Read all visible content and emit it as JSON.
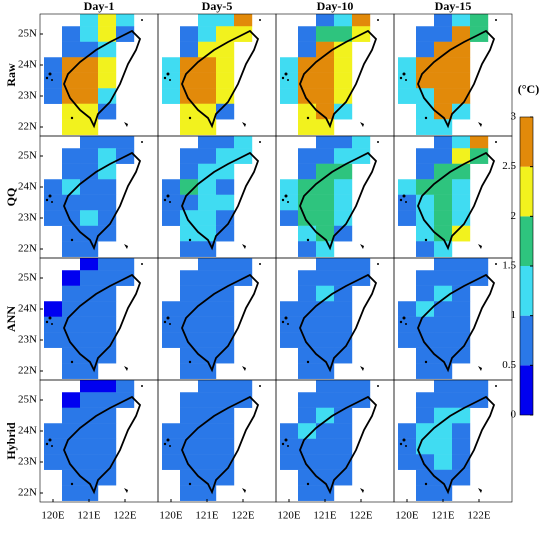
{
  "columns": [
    "Day-1",
    "Day-5",
    "Day-10",
    "Day-15"
  ],
  "rows": [
    "Raw",
    "QQ",
    "ANN",
    "Hybrid"
  ],
  "lat_ticks": [
    {
      "value": 25,
      "label": "25N"
    },
    {
      "value": 24,
      "label": "24N"
    },
    {
      "value": 23,
      "label": "23N"
    },
    {
      "value": 22,
      "label": "22N"
    }
  ],
  "lon_ticks": [
    {
      "value": 120,
      "label": "120E"
    },
    {
      "value": 121,
      "label": "121E"
    },
    {
      "value": 122,
      "label": "122E"
    }
  ],
  "cell_lon": [
    120,
    120.5,
    121,
    121.5,
    122
  ],
  "cell_lat": [
    25.5,
    25,
    24.5,
    24,
    23.5,
    23,
    22.5,
    22
  ],
  "colorbar": {
    "label": "(°C)",
    "ticks": [
      0,
      0.5,
      1,
      1.5,
      2,
      2.5,
      3
    ],
    "colors": [
      "#0000f0",
      "#2a78e8",
      "#40dcf2",
      "#2ec47e",
      "#f2f21e",
      "#e28a0a"
    ]
  },
  "panels": [
    [
      [
        [
          null,
          null,
          1.2,
          2.2,
          1.2
        ],
        [
          null,
          0.8,
          1.2,
          2.2,
          0.8
        ],
        [
          null,
          0.8,
          0.8,
          1.2,
          null
        ],
        [
          0.8,
          2.7,
          2.7,
          2.2,
          null
        ],
        [
          0.8,
          2.7,
          2.7,
          2.2,
          null
        ],
        [
          0.8,
          2.7,
          2.7,
          1.2,
          null
        ],
        [
          null,
          2.2,
          2.2,
          0.8,
          null
        ],
        [
          null,
          2.2,
          2.2,
          null,
          null
        ]
      ],
      [
        [
          null,
          null,
          1.2,
          1.2,
          2.7
        ],
        [
          null,
          0.8,
          1.2,
          2.2,
          2.2
        ],
        [
          null,
          0.8,
          2.2,
          2.2,
          null
        ],
        [
          1.2,
          2.7,
          2.7,
          2.2,
          null
        ],
        [
          1.2,
          2.7,
          2.7,
          2.2,
          null
        ],
        [
          1.2,
          2.7,
          2.7,
          2.2,
          null
        ],
        [
          null,
          2.2,
          2.2,
          0.8,
          null
        ],
        [
          null,
          2.2,
          2.2,
          null,
          null
        ]
      ],
      [
        [
          null,
          null,
          0.8,
          1.2,
          2.7
        ],
        [
          null,
          0.8,
          1.8,
          1.8,
          2.2
        ],
        [
          null,
          0.8,
          2.7,
          2.2,
          null
        ],
        [
          1.2,
          2.7,
          2.7,
          2.2,
          null
        ],
        [
          1.2,
          2.7,
          2.7,
          2.2,
          null
        ],
        [
          1.2,
          2.7,
          2.7,
          2.2,
          null
        ],
        [
          null,
          2.2,
          2.7,
          1.2,
          null
        ],
        [
          null,
          2.2,
          2.2,
          null,
          null
        ]
      ],
      [
        [
          null,
          null,
          0.8,
          1.2,
          1.8
        ],
        [
          null,
          0.8,
          0.8,
          2.7,
          1.8
        ],
        [
          null,
          0.8,
          2.7,
          2.7,
          null
        ],
        [
          1.2,
          2.7,
          2.7,
          2.7,
          null
        ],
        [
          1.2,
          2.7,
          2.7,
          2.7,
          null
        ],
        [
          1.2,
          1.2,
          2.7,
          2.7,
          null
        ],
        [
          null,
          1.2,
          2.7,
          1.2,
          null
        ],
        [
          null,
          1.2,
          1.2,
          null,
          null
        ]
      ]
    ],
    [
      [
        [
          null,
          null,
          0.8,
          0.8,
          0.8
        ],
        [
          null,
          0.8,
          0.8,
          1.2,
          0.8
        ],
        [
          null,
          0.8,
          0.8,
          1.2,
          null
        ],
        [
          0.8,
          1.2,
          0.8,
          0.8,
          null
        ],
        [
          0.8,
          0.8,
          0.8,
          0.8,
          null
        ],
        [
          0.8,
          0.8,
          1.2,
          0.8,
          null
        ],
        [
          null,
          0.8,
          0.8,
          0.8,
          null
        ],
        [
          null,
          0.8,
          0.8,
          null,
          null
        ]
      ],
      [
        [
          null,
          null,
          0.8,
          0.8,
          1.2
        ],
        [
          null,
          0.8,
          0.8,
          1.2,
          1.2
        ],
        [
          null,
          0.8,
          1.2,
          1.2,
          null
        ],
        [
          0.8,
          1.8,
          1.2,
          0.8,
          null
        ],
        [
          0.8,
          0.8,
          1.2,
          1.2,
          null
        ],
        [
          0.8,
          1.2,
          1.2,
          0.8,
          null
        ],
        [
          null,
          1.2,
          1.2,
          0.8,
          null
        ],
        [
          null,
          0.8,
          0.8,
          null,
          null
        ]
      ],
      [
        [
          null,
          null,
          0.8,
          0.8,
          1.2
        ],
        [
          null,
          0.8,
          0.8,
          1.2,
          1.2
        ],
        [
          null,
          0.8,
          1.8,
          1.8,
          null
        ],
        [
          1.2,
          1.8,
          1.8,
          1.2,
          null
        ],
        [
          1.2,
          1.8,
          1.8,
          1.2,
          null
        ],
        [
          0.8,
          1.8,
          1.8,
          1.2,
          null
        ],
        [
          null,
          1.2,
          1.8,
          0.8,
          null
        ],
        [
          null,
          0.8,
          1.2,
          null,
          null
        ]
      ],
      [
        [
          null,
          null,
          0.8,
          1.2,
          2.7
        ],
        [
          null,
          0.8,
          0.8,
          2.2,
          1.8
        ],
        [
          null,
          0.8,
          1.8,
          1.8,
          null
        ],
        [
          1.2,
          1.8,
          1.8,
          1.2,
          null
        ],
        [
          0.8,
          1.2,
          1.8,
          1.2,
          null
        ],
        [
          0.8,
          1.2,
          1.8,
          1.2,
          null
        ],
        [
          null,
          1.2,
          1.8,
          2.2,
          null
        ],
        [
          null,
          0.8,
          1.2,
          null,
          null
        ]
      ]
    ],
    [
      [
        [
          null,
          null,
          0.3,
          0.8,
          0.8
        ],
        [
          null,
          0.3,
          0.8,
          0.8,
          0.8
        ],
        [
          null,
          0.8,
          0.8,
          0.8,
          null
        ],
        [
          0.3,
          0.8,
          0.8,
          0.8,
          null
        ],
        [
          0.8,
          0.8,
          0.8,
          0.8,
          null
        ],
        [
          0.8,
          0.8,
          0.8,
          0.8,
          null
        ],
        [
          null,
          0.8,
          0.8,
          0.8,
          null
        ],
        [
          null,
          0.8,
          0.8,
          null,
          null
        ]
      ],
      [
        [
          null,
          null,
          0.8,
          0.8,
          0.8
        ],
        [
          null,
          0.8,
          0.8,
          0.8,
          0.8
        ],
        [
          null,
          0.8,
          0.8,
          0.8,
          null
        ],
        [
          0.8,
          0.8,
          0.8,
          0.8,
          null
        ],
        [
          0.8,
          0.8,
          0.8,
          0.8,
          null
        ],
        [
          0.8,
          0.8,
          0.8,
          0.8,
          null
        ],
        [
          null,
          0.8,
          0.8,
          0.8,
          null
        ],
        [
          null,
          0.8,
          0.8,
          null,
          null
        ]
      ],
      [
        [
          null,
          null,
          0.8,
          0.8,
          0.8
        ],
        [
          null,
          0.8,
          0.8,
          0.8,
          0.8
        ],
        [
          null,
          0.8,
          1.2,
          0.8,
          null
        ],
        [
          0.8,
          0.8,
          0.8,
          0.8,
          null
        ],
        [
          0.8,
          0.8,
          0.8,
          0.8,
          null
        ],
        [
          0.8,
          0.8,
          0.8,
          0.8,
          null
        ],
        [
          null,
          0.8,
          0.8,
          0.8,
          null
        ],
        [
          null,
          0.8,
          0.8,
          null,
          null
        ]
      ],
      [
        [
          null,
          null,
          0.8,
          0.8,
          0.8
        ],
        [
          null,
          0.8,
          0.8,
          0.8,
          0.8
        ],
        [
          null,
          0.8,
          1.2,
          0.8,
          null
        ],
        [
          0.8,
          1.2,
          0.8,
          0.8,
          null
        ],
        [
          0.8,
          0.8,
          0.8,
          0.8,
          null
        ],
        [
          0.8,
          0.8,
          0.8,
          0.8,
          null
        ],
        [
          null,
          0.8,
          0.8,
          0.8,
          null
        ],
        [
          null,
          0.8,
          0.8,
          null,
          null
        ]
      ]
    ],
    [
      [
        [
          null,
          null,
          0.3,
          0.3,
          0.8
        ],
        [
          null,
          0.3,
          0.8,
          0.8,
          0.8
        ],
        [
          null,
          0.8,
          0.8,
          0.8,
          null
        ],
        [
          0.8,
          0.8,
          0.8,
          0.8,
          null
        ],
        [
          0.8,
          0.8,
          0.8,
          0.8,
          null
        ],
        [
          0.8,
          0.8,
          0.8,
          0.8,
          null
        ],
        [
          null,
          0.8,
          0.8,
          0.8,
          null
        ],
        [
          null,
          0.8,
          0.8,
          null,
          null
        ]
      ],
      [
        [
          null,
          null,
          0.8,
          0.8,
          0.8
        ],
        [
          null,
          0.8,
          0.8,
          0.8,
          0.8
        ],
        [
          null,
          0.8,
          0.8,
          0.8,
          null
        ],
        [
          0.8,
          0.8,
          0.8,
          0.8,
          null
        ],
        [
          0.8,
          0.8,
          0.8,
          0.8,
          null
        ],
        [
          0.8,
          0.8,
          0.8,
          0.8,
          null
        ],
        [
          null,
          0.8,
          0.8,
          0.8,
          null
        ],
        [
          null,
          0.8,
          0.8,
          null,
          null
        ]
      ],
      [
        [
          null,
          null,
          0.8,
          0.8,
          0.8
        ],
        [
          null,
          0.8,
          0.8,
          0.8,
          0.8
        ],
        [
          null,
          0.8,
          1.2,
          0.8,
          null
        ],
        [
          0.8,
          1.2,
          0.8,
          0.8,
          null
        ],
        [
          0.8,
          0.8,
          0.8,
          0.8,
          null
        ],
        [
          0.8,
          0.8,
          0.8,
          0.8,
          null
        ],
        [
          null,
          0.8,
          0.8,
          0.8,
          null
        ],
        [
          null,
          0.8,
          0.8,
          null,
          null
        ]
      ],
      [
        [
          null,
          null,
          0.8,
          0.8,
          0.8
        ],
        [
          null,
          0.8,
          0.8,
          0.8,
          0.8
        ],
        [
          null,
          0.8,
          1.2,
          1.2,
          null
        ],
        [
          0.8,
          1.2,
          1.2,
          0.8,
          null
        ],
        [
          0.8,
          1.2,
          1.2,
          0.8,
          null
        ],
        [
          0.8,
          0.8,
          1.2,
          0.8,
          null
        ],
        [
          null,
          0.8,
          0.8,
          0.8,
          null
        ],
        [
          null,
          0.8,
          0.8,
          null,
          null
        ]
      ]
    ]
  ]
}
